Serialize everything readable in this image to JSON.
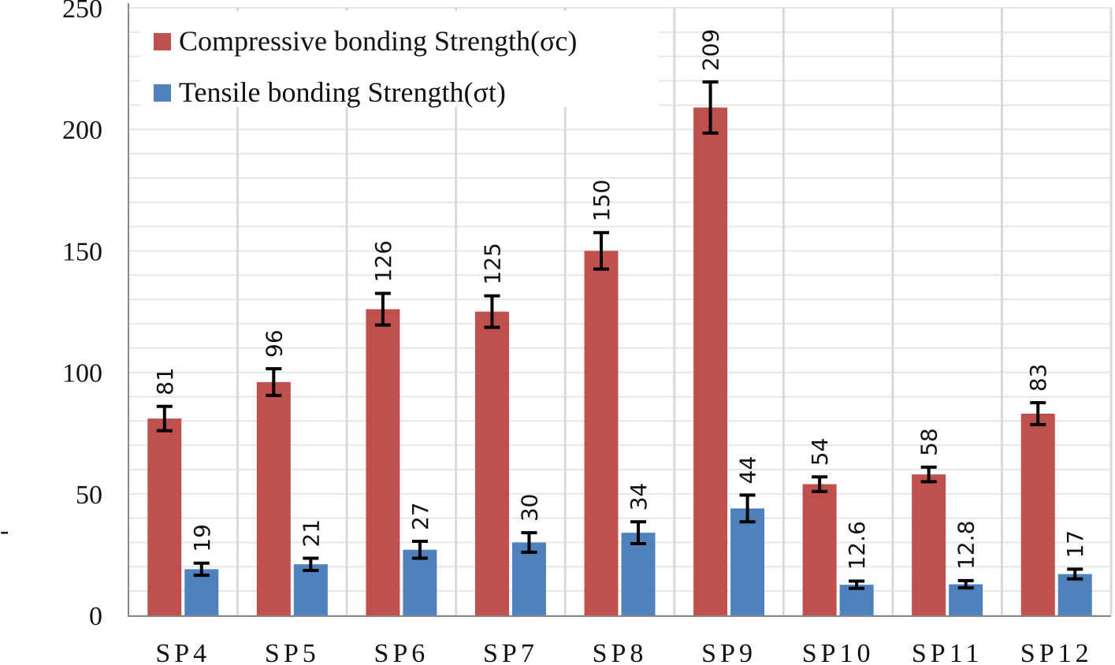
{
  "chart_data": {
    "type": "bar",
    "title": "",
    "xlabel": "",
    "ylabel": "",
    "ylim": [
      0,
      250
    ],
    "yticks": [
      0,
      50,
      100,
      150,
      200,
      250
    ],
    "grid": true,
    "legend_position": "top-left",
    "categories": [
      "SP4",
      "SP5",
      "SP6",
      "SP7",
      "SP8",
      "SP9",
      "SP10",
      "SP11",
      "SP12"
    ],
    "series": [
      {
        "name": "Compressive bonding Strength(σc)",
        "color": "#c0504d",
        "values": [
          81,
          96,
          126,
          125,
          150,
          209,
          54,
          58,
          83
        ],
        "labels": [
          "81",
          "96",
          "126",
          "125",
          "150",
          "209",
          "54",
          "58",
          "83"
        ],
        "errors": [
          5,
          5.5,
          6.5,
          6.5,
          7.5,
          10.5,
          3,
          3,
          4.5
        ]
      },
      {
        "name": "Tensile bonding Strength(σt)",
        "color": "#4f81bd",
        "values": [
          19,
          21,
          27,
          30,
          34,
          44,
          12.6,
          12.8,
          17
        ],
        "labels": [
          "19",
          "21",
          "27",
          "30",
          "34",
          "44",
          "12.6",
          "12.8",
          "17"
        ],
        "errors": [
          2.5,
          2.5,
          3.5,
          4,
          4.5,
          5.5,
          1.5,
          1.5,
          2
        ]
      }
    ]
  }
}
